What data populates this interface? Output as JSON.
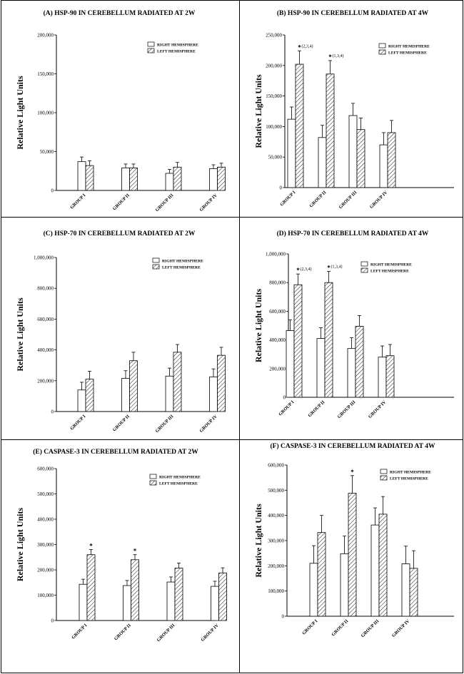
{
  "figure": {
    "legend": {
      "right": "RIGHT HEMISPHERE",
      "left": "LEFT HEMISPHERE"
    }
  },
  "chart_data": [
    {
      "id": "A",
      "type": "bar",
      "title": "(A) HSP-90 IN CEREBELLUM RADIATED AT 2W",
      "ylabel": "Relative Light Units",
      "categories": [
        "GROUP I",
        "GROUP II",
        "GROUP III",
        "GROUP IV"
      ],
      "ylim": [
        0,
        200000
      ],
      "yticks": [
        0,
        50000,
        100000,
        150000,
        200000
      ],
      "ytick_labels": [
        "0",
        "50,000",
        "100,000",
        "150,000",
        "200,000"
      ],
      "series": [
        {
          "name": "RIGHT HEMISPHERE",
          "values": [
            37000,
            29000,
            22000,
            28000
          ],
          "errors": [
            6000,
            5000,
            5000,
            5000
          ]
        },
        {
          "name": "LEFT HEMISPHERE",
          "values": [
            32000,
            29000,
            30000,
            30000
          ],
          "errors": [
            6000,
            5000,
            6000,
            5000
          ]
        }
      ],
      "annotations": []
    },
    {
      "id": "B",
      "type": "bar",
      "title": "(B) HSP-90 IN CEREBELLUM RADIATED AT 4W",
      "ylabel": "Relative Light Units",
      "categories": [
        "GROUP I",
        "GROUP II",
        "GROUP III",
        "GROUP IV"
      ],
      "ylim": [
        0,
        250000
      ],
      "yticks": [
        0,
        50000,
        100000,
        150000,
        200000,
        250000
      ],
      "ytick_labels": [
        "0",
        "50,000",
        "100,000",
        "150,000",
        "200,000",
        "250,000"
      ],
      "series": [
        {
          "name": "RIGHT HEMISPHERE",
          "values": [
            112000,
            82000,
            118000,
            70000
          ],
          "errors": [
            20000,
            20000,
            20000,
            20000
          ]
        },
        {
          "name": "LEFT HEMISPHERE",
          "values": [
            202000,
            186000,
            95000,
            90000
          ],
          "errors": [
            22000,
            22000,
            19000,
            20000
          ]
        }
      ],
      "annotations": [
        {
          "group": 0,
          "series": 1,
          "star": "*",
          "text": "(2,3,4)"
        },
        {
          "group": 1,
          "series": 1,
          "star": "*",
          "text": "(1,3,4)"
        }
      ]
    },
    {
      "id": "C",
      "type": "bar",
      "title": "(C) HSP-70 IN CEREBELLUM RADIATED  AT 2W",
      "ylabel": "Relative Light Units",
      "categories": [
        "GROUP I",
        "GROUP II",
        "GROUP III",
        "GROUP IV"
      ],
      "ylim": [
        0,
        1000000
      ],
      "yticks": [
        0,
        200000,
        400000,
        600000,
        800000,
        1000000
      ],
      "ytick_labels": [
        "0",
        "200,000",
        "400,000",
        "600,000",
        "800,000",
        "1,000,000"
      ],
      "series": [
        {
          "name": "RIGHT HEMISPHERE",
          "values": [
            140000,
            215000,
            230000,
            225000
          ],
          "errors": [
            50000,
            50000,
            52000,
            52000
          ]
        },
        {
          "name": "LEFT HEMISPHERE",
          "values": [
            210000,
            330000,
            385000,
            365000
          ],
          "errors": [
            52000,
            55000,
            50000,
            52000
          ]
        }
      ],
      "annotations": []
    },
    {
      "id": "D",
      "type": "bar",
      "title": "(D) HSP-70 IN CEREBELLUM RADIATED AT 4W",
      "ylabel": "Relative Light Units",
      "categories": [
        "GROUP I",
        "GROUP II",
        "GROUP III",
        "GROUP IV"
      ],
      "ylim": [
        0,
        1000000
      ],
      "yticks": [
        0,
        200000,
        400000,
        600000,
        800000,
        1000000
      ],
      "ytick_labels": [
        "0",
        "200,000",
        "400,000",
        "600,000",
        "800,000",
        "1,000,000"
      ],
      "series": [
        {
          "name": "RIGHT HEMISPHERE",
          "values": [
            465000,
            410000,
            340000,
            280000
          ],
          "errors": [
            75000,
            75000,
            75000,
            78000
          ]
        },
        {
          "name": "LEFT HEMISPHERE",
          "values": [
            785000,
            800000,
            495000,
            290000
          ],
          "errors": [
            75000,
            78000,
            75000,
            78000
          ]
        }
      ],
      "annotations": [
        {
          "group": 0,
          "series": 1,
          "star": "*",
          "text": "(2,3,4)"
        },
        {
          "group": 1,
          "series": 1,
          "star": "*",
          "text": "(1,3,4)"
        }
      ]
    },
    {
      "id": "E",
      "type": "bar",
      "title": "(E) CASPASE-3 IN CEREBELLUM RADIATED AT 2W",
      "ylabel": "Relative Light Units",
      "categories": [
        "GROUP I",
        "GROUP II",
        "GROUP III",
        "GROUP IV"
      ],
      "ylim": [
        0,
        600000
      ],
      "yticks": [
        0,
        100000,
        200000,
        300000,
        400000,
        500000,
        600000
      ],
      "ytick_labels": [
        "0",
        "100,000",
        "200,000",
        "300,000",
        "400,000",
        "500,000",
        "600,000"
      ],
      "series": [
        {
          "name": "RIGHT HEMISPHERE",
          "values": [
            143000,
            138000,
            152000,
            135000
          ],
          "errors": [
            20000,
            20000,
            20000,
            20000
          ]
        },
        {
          "name": "LEFT HEMISPHERE",
          "values": [
            260000,
            240000,
            207000,
            188000
          ],
          "errors": [
            20000,
            20000,
            20000,
            20000
          ]
        }
      ],
      "annotations": [
        {
          "group": 0,
          "series": 1,
          "star": "*",
          "text": ""
        },
        {
          "group": 1,
          "series": 1,
          "star": "*",
          "text": ""
        }
      ]
    },
    {
      "id": "F",
      "type": "bar",
      "title": "(F) CASPASE-3 IN CEREBELLUM  RADIATED AT 4W",
      "ylabel": "Relative Light Units",
      "categories": [
        "GROUP I",
        "GROUP II",
        "GROUP III",
        "GROUP IV"
      ],
      "ylim": [
        0,
        600000
      ],
      "yticks": [
        0,
        100000,
        200000,
        300000,
        400000,
        500000,
        600000
      ],
      "ytick_labels": [
        "0",
        "100,000",
        "200,000",
        "300,000",
        "400,000",
        "500,000",
        "600,000"
      ],
      "series": [
        {
          "name": "RIGHT HEMISPHERE",
          "values": [
            210000,
            248000,
            362000,
            208000
          ],
          "errors": [
            70000,
            70000,
            68000,
            70000
          ]
        },
        {
          "name": "LEFT HEMISPHERE",
          "values": [
            332000,
            488000,
            405000,
            190000
          ],
          "errors": [
            68000,
            70000,
            70000,
            70000
          ]
        }
      ],
      "annotations": [
        {
          "group": 1,
          "series": 1,
          "star": "*",
          "text": ""
        }
      ]
    }
  ]
}
